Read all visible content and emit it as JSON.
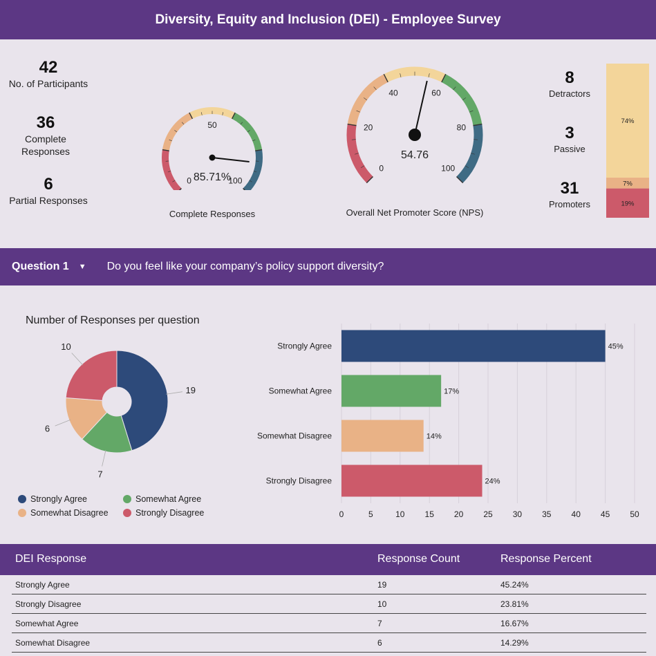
{
  "header": {
    "title": "Diversity, Equity and Inclusion (DEI) - Employee Survey"
  },
  "kpis": {
    "participants": {
      "value": "42",
      "label": "No. of Participants"
    },
    "complete": {
      "value": "36",
      "label": "Complete Responses"
    },
    "partial": {
      "value": "6",
      "label": "Partial Responses"
    }
  },
  "gauge_complete": {
    "value": 85.71,
    "value_text": "85.71%",
    "tick_labels": [
      "0",
      "50",
      "100"
    ],
    "caption": "Complete Responses"
  },
  "gauge_nps": {
    "value": 54.76,
    "value_text": "54.76",
    "tick_labels": [
      "0",
      "20",
      "40",
      "60",
      "80",
      "100"
    ],
    "caption": "Overall Net Promoter Score (NPS)"
  },
  "nps_breakdown": {
    "detractors": {
      "value": "8",
      "label": "Detractors"
    },
    "passive": {
      "value": "3",
      "label": "Passive"
    },
    "promoters": {
      "value": "31",
      "label": "Promoters"
    },
    "stack": [
      {
        "label": "74%",
        "pct": 74,
        "color": "#f3d59a"
      },
      {
        "label": "7%",
        "pct": 7,
        "color": "#e9b286"
      },
      {
        "label": "19%",
        "pct": 19,
        "color": "#cc5a6a"
      }
    ]
  },
  "question": {
    "label": "Question 1",
    "text": "Do you feel like your company’s policy support diversity?"
  },
  "colors": {
    "strongly_agree": "#2d4a7a",
    "somewhat_agree": "#63a867",
    "somewhat_disagree": "#e9b286",
    "strongly_disagree": "#cc5a6a",
    "header_purple": "#5c3784"
  },
  "chart_data": [
    {
      "type": "pie",
      "title": "Number of Responses per question",
      "categories": [
        "Strongly Agree",
        "Somewhat Agree",
        "Somewhat Disagree",
        "Strongly Disagree"
      ],
      "values": [
        19,
        7,
        6,
        10
      ],
      "data_labels": [
        "19",
        "7",
        "6",
        "10"
      ],
      "legend": [
        "Strongly Agree",
        "Somewhat Agree",
        "Somewhat Disagree",
        "Strongly Disagree"
      ],
      "legend_position": "bottom"
    },
    {
      "type": "bar",
      "orientation": "horizontal",
      "categories": [
        "Strongly Agree",
        "Somewhat Agree",
        "Somewhat Disagree",
        "Strongly Disagree"
      ],
      "values": [
        45,
        17,
        14,
        24
      ],
      "data_labels": [
        "45%",
        "17%",
        "14%",
        "24%"
      ],
      "xlim": [
        0,
        50
      ],
      "x_ticks": [
        "0",
        "5",
        "10",
        "15",
        "20",
        "25",
        "30",
        "35",
        "40",
        "45",
        "50"
      ],
      "grid": true
    }
  ],
  "table": {
    "headers": [
      "DEI Response",
      "Response Count",
      "Response Percent"
    ],
    "rows": [
      [
        "Strongly Agree",
        "19",
        "45.24%"
      ],
      [
        "Strongly Disagree",
        "10",
        "23.81%"
      ],
      [
        "Somewhat Agree",
        "7",
        "16.67%"
      ],
      [
        "Somewhat Disagree",
        "6",
        "14.29%"
      ]
    ]
  }
}
